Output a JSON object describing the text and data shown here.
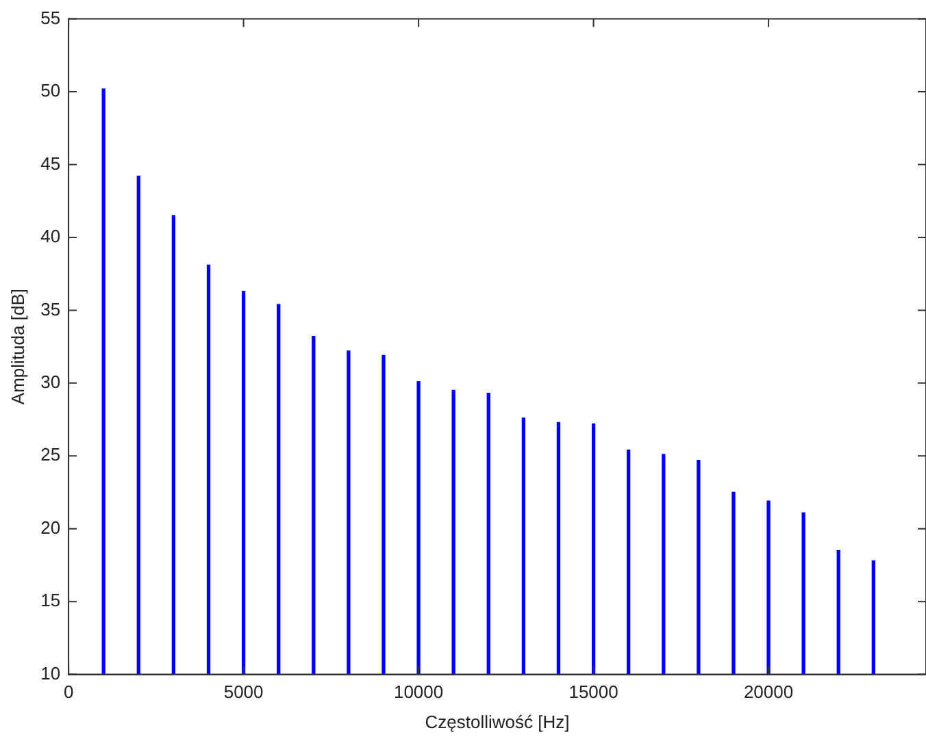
{
  "chart_data": {
    "type": "bar",
    "xlabel": "Częstolliwość [Hz]",
    "ylabel": "Amplituda [dB]",
    "x": [
      1000,
      2000,
      3000,
      4000,
      5000,
      6000,
      7000,
      8000,
      9000,
      10000,
      11000,
      12000,
      13000,
      14000,
      15000,
      16000,
      17000,
      18000,
      19000,
      20000,
      21000,
      22000,
      23000
    ],
    "values": [
      50.2,
      44.2,
      41.5,
      38.1,
      36.3,
      35.4,
      33.2,
      32.2,
      31.9,
      30.1,
      29.5,
      29.3,
      27.6,
      27.3,
      27.2,
      25.4,
      25.1,
      24.7,
      22.5,
      21.9,
      21.1,
      18.5,
      17.8
    ],
    "color": "#0000ff",
    "xlim": [
      0,
      24500
    ],
    "xticks": [
      0,
      5000,
      10000,
      15000,
      20000
    ],
    "ylim": [
      10,
      55
    ],
    "yticks": [
      10,
      15,
      20,
      25,
      30,
      35,
      40,
      45,
      50,
      55
    ],
    "grid": false,
    "legend": false
  }
}
